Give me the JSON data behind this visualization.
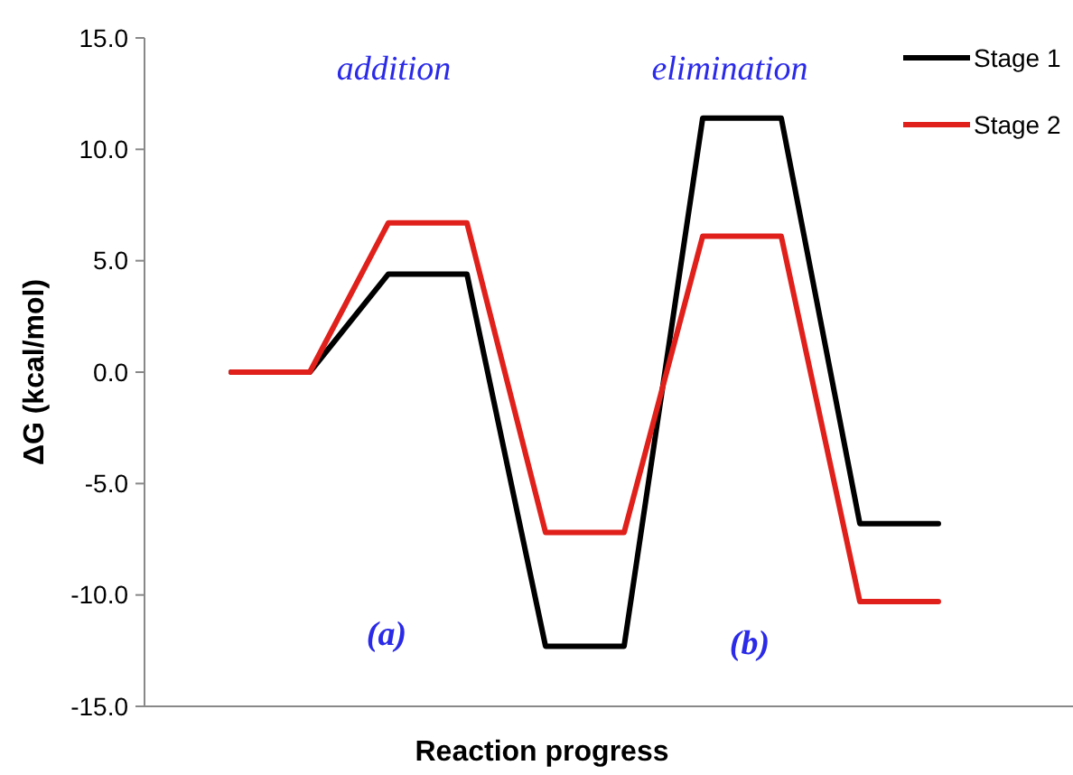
{
  "chart_data": {
    "type": "line",
    "ylabel": "ΔG (kcal/mol)",
    "xlabel": "Reaction progress",
    "categories": [
      null,
      null,
      null,
      null,
      null,
      null,
      null,
      null,
      null,
      null
    ],
    "series": [
      {
        "name": "Stage 1",
        "color": "#000000",
        "values": [
          0,
          0,
          4.4,
          4.4,
          -12.3,
          -12.3,
          11.4,
          11.4,
          -6.8,
          -6.8
        ]
      },
      {
        "name": "Stage 2",
        "color": "#e0201b",
        "values": [
          0,
          0,
          6.7,
          6.7,
          -7.2,
          -7.2,
          6.1,
          6.1,
          -10.3,
          -10.3
        ]
      }
    ],
    "ylim": [
      -15,
      15
    ],
    "yticks": [
      {
        "value": -15,
        "label": "-15.0"
      },
      {
        "value": -10,
        "label": "-10.0"
      },
      {
        "value": -5,
        "label": "-5.0"
      },
      {
        "value": 0,
        "label": "0.0"
      },
      {
        "value": 5,
        "label": "5.0"
      },
      {
        "value": 10,
        "label": "10.0"
      },
      {
        "value": 15,
        "label": "15.0"
      }
    ],
    "annotations": [
      "addition",
      "elimination",
      "(a)",
      "(b)"
    ],
    "legend": "top right",
    "grid": false,
    "marker": "none",
    "line_style": "solid"
  }
}
